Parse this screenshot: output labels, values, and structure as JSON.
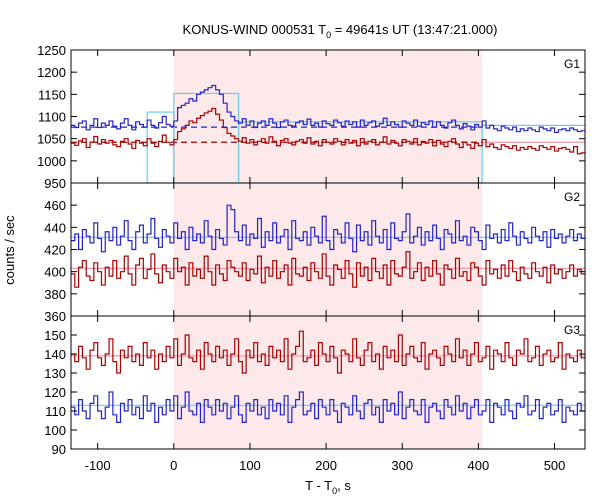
{
  "chart_data": {
    "type": "line",
    "title": "KONUS-WIND 000531 T",
    "title_sub": "0",
    "title_rest": " = 49641s UT (13:47:21.000)",
    "xlabel": "T - T",
    "xlabel_sub": "0",
    "xlabel_rest": ", s",
    "ylabel": "counts / sec",
    "xlim": [
      -135,
      540
    ],
    "xticks": [
      -100,
      0,
      100,
      200,
      300,
      400,
      500
    ],
    "shaded_interval": [
      0,
      405
    ],
    "colors": {
      "blue": "#2222cc",
      "red": "#aa0000",
      "light_blue": "#66ccee",
      "pink": "#ee99aa",
      "shade": "#fde8ea"
    },
    "panels": [
      {
        "label": "G1",
        "ylim": [
          950,
          1250
        ],
        "yticks": [
          950,
          1000,
          1050,
          1100,
          1150,
          1200,
          1250
        ],
        "series": [
          {
            "color": "blue",
            "start": -135,
            "step": 5,
            "values": [
              1080,
              1075,
              1085,
              1090,
              1070,
              1080,
              1095,
              1075,
              1085,
              1080,
              1090,
              1078,
              1072,
              1085,
              1095,
              1080,
              1070,
              1088,
              1082,
              1076,
              1092,
              1080,
              1074,
              1086,
              1100,
              1082,
              1078,
              1090,
              1120,
              1125,
              1130,
              1140,
              1135,
              1150,
              1155,
              1160,
              1165,
              1170,
              1160,
              1150,
              1130,
              1110,
              1100,
              1090,
              1085,
              1095,
              1080,
              1090,
              1075,
              1085,
              1090,
              1080,
              1095,
              1085,
              1075,
              1088,
              1092,
              1080,
              1078,
              1086,
              1090,
              1082,
              1094,
              1080,
              1085,
              1076,
              1090,
              1084,
              1080,
              1092,
              1086,
              1078,
              1090,
              1082,
              1088,
              1076,
              1092,
              1080,
              1086,
              1090,
              1078,
              1084,
              1096,
              1080,
              1088,
              1082,
              1076,
              1090,
              1085,
              1080,
              1092,
              1078,
              1086,
              1082,
              1090,
              1076,
              1088,
              1080,
              1074,
              1086,
              1092,
              1080,
              1072,
              1084,
              1078,
              1070,
              1082,
              1076,
              1090,
              1074,
              1080,
              1072,
              1068,
              1078,
              1074,
              1070,
              1076,
              1066,
              1072,
              1068,
              1074,
              1070,
              1066,
              1076,
              1072,
              1068,
              1074,
              1064,
              1070,
              1072,
              1068,
              1074,
              1070,
              1066,
              1068
            ]
          },
          {
            "color": "red",
            "start": -135,
            "step": 5,
            "values": [
              1040,
              1035,
              1045,
              1050,
              1030,
              1042,
              1055,
              1038,
              1048,
              1040,
              1046,
              1036,
              1032,
              1044,
              1050,
              1038,
              1028,
              1046,
              1040,
              1034,
              1050,
              1040,
              1032,
              1044,
              1058,
              1042,
              1036,
              1048,
              1066,
              1072,
              1080,
              1090,
              1086,
              1096,
              1102,
              1108,
              1112,
              1118,
              1105,
              1092,
              1075,
              1062,
              1056,
              1050,
              1044,
              1052,
              1040,
              1048,
              1036,
              1044,
              1050,
              1040,
              1054,
              1044,
              1034,
              1046,
              1050,
              1040,
              1036,
              1044,
              1048,
              1040,
              1052,
              1038,
              1044,
              1034,
              1048,
              1042,
              1038,
              1050,
              1044,
              1036,
              1048,
              1040,
              1046,
              1034,
              1050,
              1038,
              1044,
              1048,
              1036,
              1042,
              1054,
              1038,
              1046,
              1040,
              1034,
              1048,
              1044,
              1038,
              1050,
              1036,
              1044,
              1040,
              1048,
              1034,
              1046,
              1038,
              1032,
              1044,
              1050,
              1038,
              1030,
              1042,
              1036,
              1028,
              1040,
              1034,
              1048,
              1032,
              1038,
              1030,
              1026,
              1036,
              1032,
              1028,
              1034,
              1024,
              1030,
              1026,
              1032,
              1028,
              1024,
              1034,
              1030,
              1026,
              1032,
              1022,
              1028,
              1030,
              1026,
              1020,
              1032,
              1016,
              1018
            ]
          }
        ],
        "backgrounds": [
          {
            "color": "blue",
            "value": 1076,
            "style": "dashed",
            "x": [
              -135,
              405
            ]
          },
          {
            "color": "red",
            "value": 1042,
            "style": "dashed",
            "x": [
              -135,
              405
            ]
          },
          {
            "color": "light_blue",
            "value": 1080,
            "style": "solid",
            "x": [
              405,
              540
            ]
          },
          {
            "color": "pink",
            "value": 1042,
            "style": "solid",
            "x": [
              405,
              540
            ]
          }
        ],
        "boxes": [
          {
            "color": "light_blue",
            "x": [
              0,
              85
            ],
            "y": 1152
          },
          {
            "color": "light_blue",
            "x": [
              -35,
              0
            ],
            "y": 1110
          },
          {
            "color": "light_blue",
            "x": [
              85,
              405
            ],
            "y": 1088
          }
        ]
      },
      {
        "label": "G2",
        "ylim": [
          360,
          480
        ],
        "yticks": [
          360,
          380,
          400,
          420,
          440,
          460
        ],
        "series": [
          {
            "color": "blue",
            "start": -135,
            "step": 5,
            "values": [
              428,
              434,
              420,
              438,
              432,
              426,
              444,
              430,
              418,
              436,
              428,
              440,
              424,
              432,
              446,
              428,
              420,
              436,
              442,
              426,
              434,
              448,
              430,
              422,
              438,
              432,
              426,
              444,
              430,
              436,
              420,
              440,
              428,
              434,
              426,
              446,
              432,
              420,
              438,
              430,
              424,
              460,
              456,
              436,
              428,
              442,
              424,
              434,
              430,
              448,
              422,
              436,
              428,
              444,
              426,
              432,
              438,
              420,
              446,
              430,
              428,
              436,
              424,
              440,
              432,
              426,
              450,
              428,
              420,
              438,
              434,
              426,
              444,
              430,
              418,
              442,
              428,
              436,
              424,
              446,
              432,
              426,
              438,
              420,
              444,
              430,
              428,
              436,
              452,
              426,
              432,
              440,
              424,
              436,
              428,
              442,
              430,
              420,
              438,
              434,
              426,
              446,
              428,
              432,
              424,
              440,
              436,
              428,
              420,
              442,
              430,
              434,
              426,
              438,
              428,
              444,
              432,
              424,
              436,
              430,
              426,
              440,
              432,
              428,
              436,
              422,
              438,
              430,
              434,
              426,
              432,
              438,
              428,
              434,
              430
            ]
          },
          {
            "color": "red",
            "start": -135,
            "step": 5,
            "values": [
              398,
              386,
              404,
              410,
              396,
              392,
              408,
              400,
              388,
              404,
              396,
              410,
              394,
              400,
              414,
              398,
              388,
              406,
              412,
              394,
              402,
              416,
              398,
              390,
              406,
              400,
              394,
              412,
              400,
              404,
              388,
              408,
              396,
              402,
              394,
              414,
              400,
              388,
              406,
              398,
              392,
              410,
              404,
              400,
              396,
              408,
              392,
              402,
              398,
              414,
              390,
              404,
              396,
              410,
              394,
              400,
              406,
              388,
              412,
              398,
              396,
              404,
              392,
              408,
              400,
              394,
              416,
              396,
              388,
              406,
              402,
              394,
              410,
              398,
              386,
              408,
              396,
              404,
              392,
              412,
              400,
              394,
              406,
              388,
              410,
              398,
              396,
              404,
              418,
              394,
              400,
              408,
              392,
              404,
              396,
              410,
              398,
              388,
              406,
              402,
              394,
              412,
              396,
              400,
              392,
              408,
              404,
              396,
              388,
              410,
              398,
              402,
              394,
              406,
              396,
              410,
              400,
              392,
              404,
              398,
              394,
              408,
              400,
              396,
              404,
              390,
              406,
              398,
              402,
              394,
              400,
              406,
              396,
              402,
              398
            ]
          }
        ],
        "backgrounds": [
          {
            "color": "light_blue",
            "value": 431,
            "style": "solid",
            "x": [
              -135,
              540
            ]
          },
          {
            "color": "pink",
            "value": 403,
            "style": "solid",
            "x": [
              -135,
              540
            ]
          }
        ]
      },
      {
        "label": "G3",
        "ylim": [
          90,
          160
        ],
        "yticks": [
          90,
          100,
          110,
          120,
          130,
          140,
          150
        ],
        "series": [
          {
            "color": "red",
            "start": -135,
            "step": 5,
            "values": [
              140,
              136,
              144,
              138,
              132,
              142,
              146,
              138,
              134,
              140,
              148,
              136,
              130,
              142,
              138,
              144,
              136,
              140,
              134,
              146,
              138,
              142,
              132,
              140,
              136,
              144,
              138,
              148,
              134,
              140,
              150,
              138,
              136,
              142,
              132,
              146,
              140,
              136,
              144,
              138,
              142,
              134,
              140,
              148,
              136,
              130,
              142,
              138,
              146,
              136,
              140,
              134,
              144,
              138,
              142,
              136,
              148,
              132,
              140,
              144,
              152,
              136,
              138,
              142,
              134,
              146,
              140,
              136,
              144,
              138,
              130,
              142,
              140,
              136,
              148,
              138,
              134,
              142,
              146,
              136,
              140,
              132,
              144,
              138,
              142,
              136,
              150,
              134,
              140,
              144,
              138,
              136,
              146,
              132,
              140,
              142,
              138,
              134,
              144,
              140,
              136,
              148,
              138,
              142,
              134,
              140,
              146,
              136,
              138,
              144,
              132,
              142,
              140,
              136,
              146,
              138,
              134,
              142,
              140,
              148,
              136,
              138,
              144,
              134,
              140,
              142,
              136,
              138,
              146,
              132,
              140,
              138,
              136,
              142,
              138
            ]
          },
          {
            "color": "blue",
            "start": -135,
            "step": 5,
            "values": [
              112,
              108,
              116,
              110,
              106,
              114,
              118,
              110,
              106,
              112,
              120,
              108,
              104,
              114,
              110,
              116,
              108,
              112,
              106,
              118,
              110,
              114,
              104,
              112,
              108,
              116,
              110,
              118,
              106,
              112,
              120,
              110,
              108,
              114,
              104,
              116,
              112,
              108,
              116,
              110,
              114,
              106,
              112,
              118,
              108,
              104,
              114,
              110,
              116,
              108,
              112,
              106,
              116,
              110,
              114,
              108,
              118,
              104,
              112,
              116,
              120,
              108,
              110,
              114,
              106,
              116,
              112,
              108,
              116,
              110,
              104,
              114,
              112,
              108,
              118,
              110,
              106,
              114,
              116,
              108,
              112,
              104,
              116,
              110,
              114,
              108,
              120,
              106,
              112,
              116,
              110,
              108,
              116,
              104,
              112,
              114,
              110,
              106,
              116,
              112,
              108,
              118,
              110,
              114,
              106,
              112,
              116,
              108,
              110,
              116,
              104,
              114,
              112,
              108,
              116,
              110,
              106,
              114,
              112,
              118,
              108,
              110,
              116,
              106,
              112,
              114,
              108,
              110,
              116,
              104,
              112,
              110,
              108,
              114,
              110
            ]
          }
        ],
        "backgrounds": [
          {
            "color": "pink",
            "value": 139,
            "style": "solid",
            "x": [
              -135,
              540
            ]
          },
          {
            "color": "light_blue",
            "value": 113,
            "style": "solid",
            "x": [
              -135,
              540
            ]
          }
        ]
      }
    ]
  }
}
